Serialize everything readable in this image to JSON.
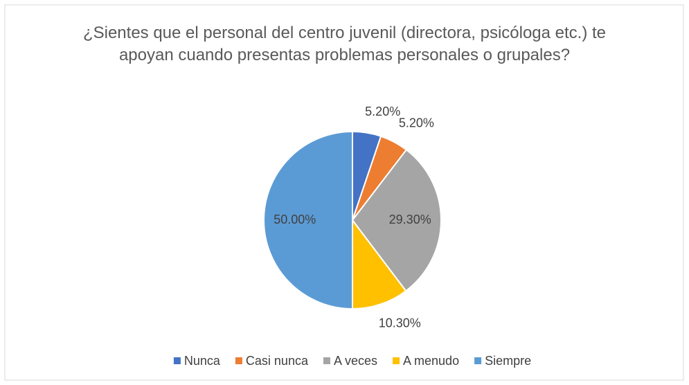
{
  "chart_data": {
    "type": "pie",
    "title": "¿Sientes que el personal del centro juvenil (directora, psicóloga etc.) te apoyan cuando presentas problemas personales o grupales?",
    "categories": [
      "Nunca",
      "Casi nunca",
      "A veces",
      "A menudo",
      "Siempre"
    ],
    "values": [
      5.2,
      5.2,
      29.3,
      10.3,
      50.0
    ],
    "value_labels": [
      "5.20%",
      "5.20%",
      "29.30%",
      "10.30%",
      "50.00%"
    ],
    "colors": [
      "#4472c4",
      "#ed7d31",
      "#a5a5a5",
      "#ffc000",
      "#5b9bd5"
    ],
    "legend": "bottom"
  }
}
